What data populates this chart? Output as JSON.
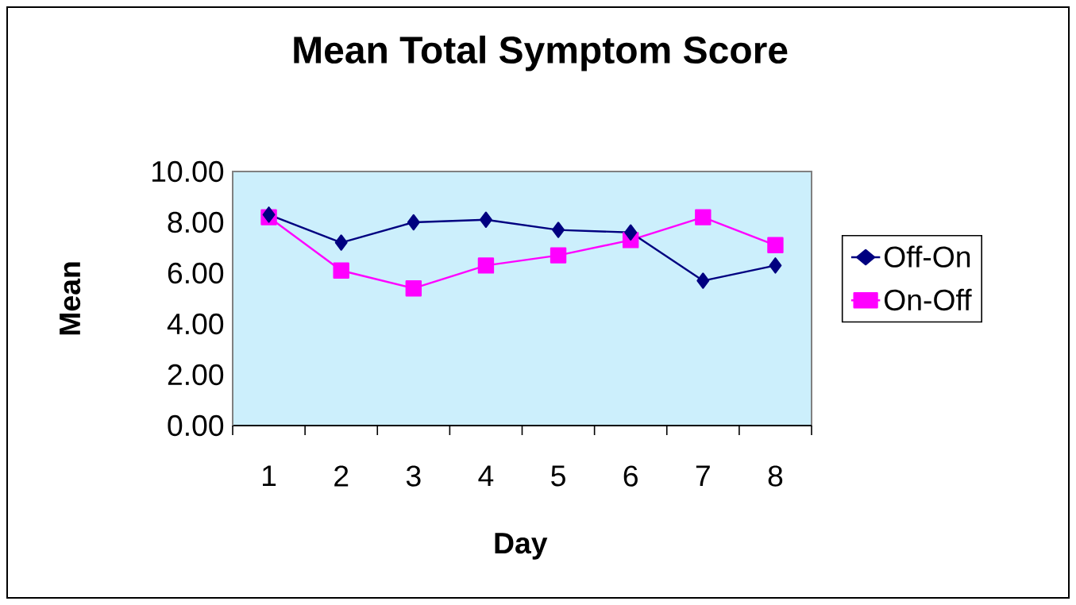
{
  "chart_data": {
    "type": "line",
    "title": "Mean Total Symptom Score",
    "xlabel": "Day",
    "ylabel": "Mean",
    "categories": [
      "1",
      "2",
      "3",
      "4",
      "5",
      "6",
      "7",
      "8"
    ],
    "series": [
      {
        "name": "Off-On",
        "color": "#000080",
        "marker": "diamond",
        "values": [
          8.3,
          7.2,
          8.0,
          8.1,
          7.7,
          7.6,
          5.7,
          6.3
        ]
      },
      {
        "name": "On-Off",
        "color": "#ff00ff",
        "marker": "square",
        "values": [
          8.2,
          6.1,
          5.4,
          6.3,
          6.7,
          7.3,
          8.2,
          7.1
        ]
      }
    ],
    "ylim": [
      0,
      10
    ],
    "yticks": [
      {
        "value": 0,
        "label": "0.00"
      },
      {
        "value": 2,
        "label": "2.00"
      },
      {
        "value": 4,
        "label": "4.00"
      },
      {
        "value": 6,
        "label": "6.00"
      },
      {
        "value": 8,
        "label": "8.00"
      },
      {
        "value": 10,
        "label": "10.00"
      }
    ],
    "grid": false,
    "legend": "right",
    "line_style": "solid"
  }
}
